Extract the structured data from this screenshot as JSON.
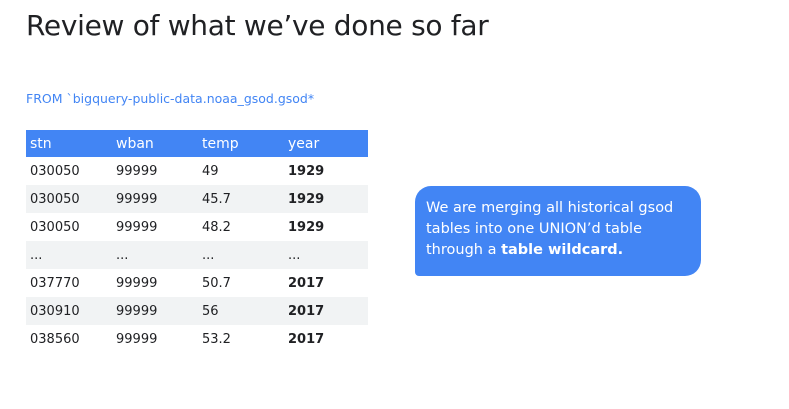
{
  "slide": {
    "title": "Review of what we’ve done so far"
  },
  "query": {
    "text": "FROM `bigquery-public-data.noaa_gsod.gsod*"
  },
  "table": {
    "headers": [
      "stn",
      "wban",
      "temp",
      "year"
    ],
    "rows": [
      [
        "030050",
        "99999",
        "49",
        "1929"
      ],
      [
        "030050",
        "99999",
        "45.7",
        "1929"
      ],
      [
        "030050",
        "99999",
        "48.2",
        "1929"
      ],
      [
        "...",
        "...",
        "...",
        "..."
      ],
      [
        "037770",
        "99999",
        "50.7",
        "2017"
      ],
      [
        "030910",
        "99999",
        "56",
        "2017"
      ],
      [
        "038560",
        "99999",
        "53.2",
        "2017"
      ]
    ]
  },
  "callout": {
    "line1": "We are merging all historical gsod",
    "line2": "tables into one UNION’d table",
    "line3_prefix": "through a ",
    "line3_bold": "table wildcard."
  },
  "colors": {
    "accent": "#4285f4",
    "text": "#202124",
    "stripe": "#f1f3f4"
  }
}
